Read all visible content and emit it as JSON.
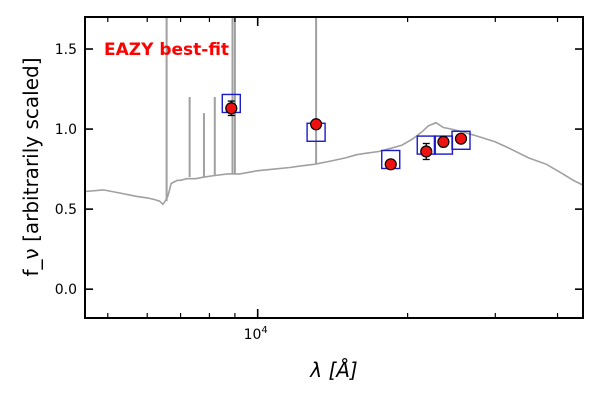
{
  "chart_data": {
    "type": "scatter",
    "annotation": "EAZY best-fit",
    "annotation_color": "#ff0000",
    "xlabel": "λ [Å]",
    "ylabel": "f_ν [arbitrarily scaled]",
    "x_scale": "log",
    "xlim": [
      4500,
      45000
    ],
    "ylim": [
      -0.18,
      1.7
    ],
    "x_ticks": [
      {
        "value": 10000,
        "label": "10^4"
      }
    ],
    "y_ticks": [
      {
        "value": 0.0,
        "label": "0.0"
      },
      {
        "value": 0.5,
        "label": "0.5"
      },
      {
        "value": 1.0,
        "label": "1.0"
      },
      {
        "value": 1.5,
        "label": "1.5"
      }
    ],
    "grid": false,
    "colors": {
      "model": "#a0a0a0",
      "photometry": "#ee1111",
      "synthetic": "#1a1acc",
      "text": "#000000"
    },
    "series": [
      {
        "role": "model",
        "style": "line",
        "x": [
          4500,
          4900,
          5300,
          5700,
          6000,
          6200,
          6350,
          6450,
          6550,
          6600,
          6650,
          6700,
          6800,
          6900,
          7000,
          7200,
          7500,
          7800,
          8200,
          8700,
          9200,
          9600,
          10000,
          10800,
          11600,
          12200,
          13000,
          14000,
          15000,
          15800,
          16600,
          17500,
          18500,
          19500,
          20500,
          21500,
          22000,
          22800,
          23600,
          24500,
          26000,
          28000,
          30000,
          32000,
          35000,
          38000,
          41000,
          43000,
          45000
        ],
        "y": [
          0.61,
          0.62,
          0.6,
          0.58,
          0.57,
          0.56,
          0.55,
          0.53,
          0.56,
          0.58,
          0.62,
          0.66,
          0.67,
          0.68,
          0.68,
          0.69,
          0.69,
          0.7,
          0.71,
          0.72,
          0.72,
          0.73,
          0.74,
          0.75,
          0.76,
          0.77,
          0.78,
          0.8,
          0.82,
          0.84,
          0.85,
          0.86,
          0.88,
          0.9,
          0.94,
          0.99,
          1.02,
          1.04,
          1.01,
          1.0,
          0.98,
          0.95,
          0.92,
          0.88,
          0.82,
          0.78,
          0.72,
          0.68,
          0.65
        ]
      },
      {
        "role": "model-emission-lines",
        "style": "spikes",
        "lines": [
          {
            "x": 6563,
            "base": 0.55,
            "top": 1.7
          },
          {
            "x": 7300,
            "base": 0.7,
            "top": 1.2
          },
          {
            "x": 7800,
            "base": 0.7,
            "top": 1.1
          },
          {
            "x": 8200,
            "base": 0.71,
            "top": 1.2
          },
          {
            "x": 8900,
            "base": 0.72,
            "top": 1.7
          },
          {
            "x": 9000,
            "base": 0.72,
            "top": 1.7
          },
          {
            "x": 13100,
            "base": 0.78,
            "top": 1.7
          }
        ]
      },
      {
        "role": "synthetic-fluxes",
        "style": "square",
        "x": [
          8850,
          13100,
          18500,
          21800,
          23600,
          25600
        ],
        "y": [
          1.16,
          0.98,
          0.81,
          0.9,
          0.9,
          0.93
        ]
      },
      {
        "role": "photometry",
        "style": "errorbar",
        "x": [
          8850,
          13100,
          18500,
          21800,
          23600,
          25600
        ],
        "y": [
          1.13,
          1.03,
          0.78,
          0.86,
          0.92,
          0.94
        ],
        "yerr": [
          0.045,
          0.01,
          0.02,
          0.05,
          0.03,
          0.02
        ]
      }
    ]
  }
}
